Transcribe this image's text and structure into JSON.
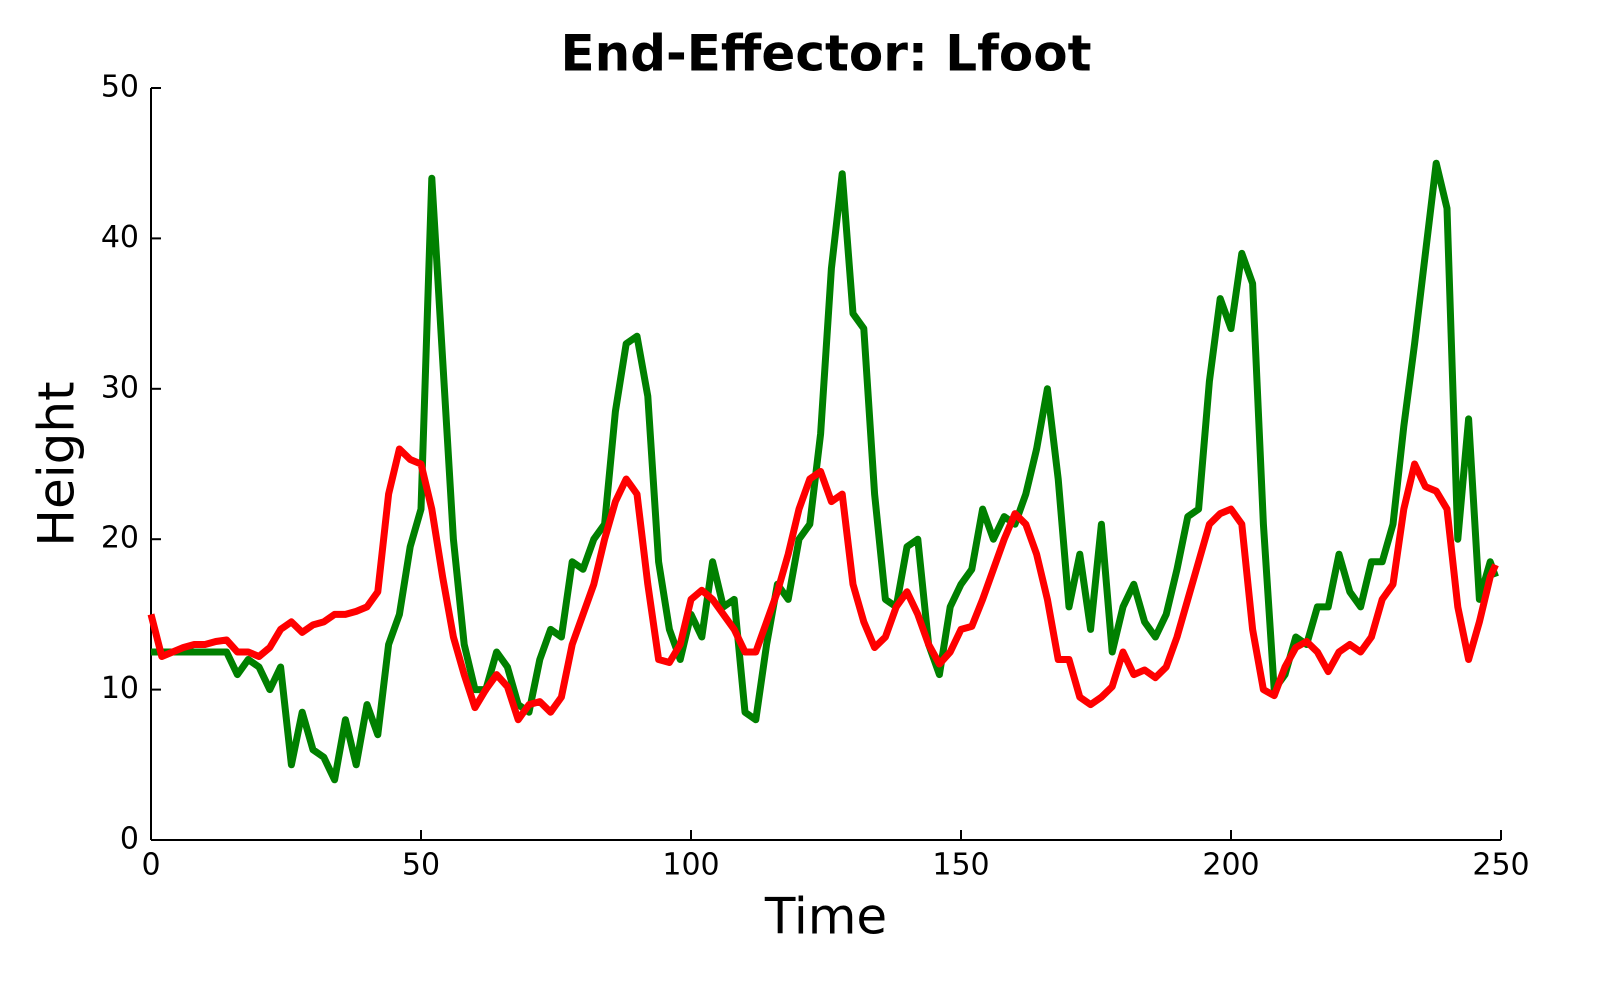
{
  "chart_data": {
    "type": "line",
    "title": "End-Effector: Lfoot",
    "x_label": "Time",
    "y_label": "Height",
    "x": [
      0,
      2,
      4,
      6,
      8,
      10,
      12,
      14,
      16,
      18,
      20,
      22,
      24,
      26,
      28,
      30,
      32,
      34,
      36,
      38,
      40,
      42,
      44,
      46,
      48,
      50,
      52,
      54,
      56,
      58,
      60,
      62,
      64,
      66,
      68,
      70,
      72,
      74,
      76,
      78,
      80,
      82,
      84,
      86,
      88,
      90,
      92,
      94,
      96,
      98,
      100,
      102,
      104,
      106,
      108,
      110,
      112,
      114,
      116,
      118,
      120,
      122,
      124,
      126,
      128,
      130,
      132,
      134,
      136,
      138,
      140,
      142,
      144,
      146,
      148,
      150,
      152,
      154,
      156,
      158,
      160,
      162,
      164,
      166,
      168,
      170,
      172,
      174,
      176,
      178,
      180,
      182,
      184,
      186,
      188,
      190,
      192,
      194,
      196,
      198,
      200,
      202,
      204,
      206,
      208,
      210,
      212,
      214,
      216,
      218,
      220,
      222,
      224,
      226,
      228,
      230,
      232,
      234,
      236,
      238,
      240,
      242,
      244,
      246,
      248,
      249
    ],
    "series": [
      {
        "color": "#008000",
        "values": [
          12.5,
          12.5,
          12.5,
          12.5,
          12.5,
          12.5,
          12.5,
          12.5,
          11,
          12,
          11.5,
          10,
          11.5,
          5,
          8.5,
          6,
          5.5,
          4,
          8,
          5,
          9,
          7,
          13,
          15,
          19.5,
          22,
          44,
          32,
          20,
          13,
          10,
          10,
          12.5,
          11.5,
          9,
          8.5,
          12,
          14,
          13.5,
          18.5,
          18,
          20,
          21,
          28.5,
          33,
          33.5,
          29.5,
          18.5,
          14,
          12,
          15,
          13.5,
          18.5,
          15.5,
          16,
          8.5,
          8,
          13,
          17,
          16,
          20,
          21,
          27,
          38,
          44.3,
          35,
          34,
          23,
          16,
          15.5,
          19.5,
          20,
          13,
          11,
          15.5,
          17,
          18,
          22,
          20,
          21.5,
          21,
          23,
          26,
          30,
          24,
          15.5,
          19,
          14,
          21,
          12.5,
          15.5,
          17,
          14.5,
          13.5,
          15,
          18,
          21.5,
          22,
          30.5,
          36,
          34,
          39,
          37,
          21,
          10,
          11,
          13.5,
          13,
          15.5,
          15.5,
          19,
          16.5,
          15.5,
          18.5,
          18.5,
          21,
          27.5,
          33,
          39,
          45,
          42,
          20,
          28,
          16,
          18.5,
          17.5
        ]
      },
      {
        "color": "#ff0000",
        "values": [
          15,
          12.2,
          12.5,
          12.8,
          13,
          13,
          13.2,
          13.3,
          12.5,
          12.5,
          12.2,
          12.8,
          14,
          14.5,
          13.8,
          14.3,
          14.5,
          15,
          15,
          15.2,
          15.5,
          16.5,
          23,
          26,
          25.3,
          25,
          22,
          17.5,
          13.5,
          11,
          8.8,
          10,
          11,
          10.2,
          8,
          9,
          9.2,
          8.5,
          9.5,
          13,
          15,
          17,
          20,
          22.5,
          24,
          23,
          17,
          12,
          11.8,
          13,
          16,
          16.6,
          16,
          15,
          14,
          12.5,
          12.5,
          14.5,
          16.5,
          19,
          22,
          24,
          24.5,
          22.5,
          23,
          17,
          14.5,
          12.8,
          13.5,
          15.5,
          16.5,
          15,
          13,
          11.7,
          12.5,
          14,
          14.2,
          16,
          18,
          20,
          21.7,
          21,
          19,
          16,
          12,
          12,
          9.5,
          9,
          9.5,
          10.2,
          12.5,
          11,
          11.3,
          10.8,
          11.5,
          13.5,
          16,
          18.5,
          21,
          21.7,
          22,
          21,
          14,
          10,
          9.6,
          11.5,
          12.8,
          13.2,
          12.5,
          11.2,
          12.5,
          13,
          12.5,
          13.5,
          16,
          17,
          22,
          25,
          23.5,
          23.2,
          22,
          15.5,
          12,
          14.5,
          17.5,
          18.3
        ]
      }
    ],
    "xlim": [
      0,
      250
    ],
    "xticks": [
      0,
      50,
      100,
      150,
      200,
      250
    ],
    "ylim": [
      0,
      50
    ],
    "yticks": [
      0,
      10,
      20,
      30,
      40,
      50
    ]
  }
}
